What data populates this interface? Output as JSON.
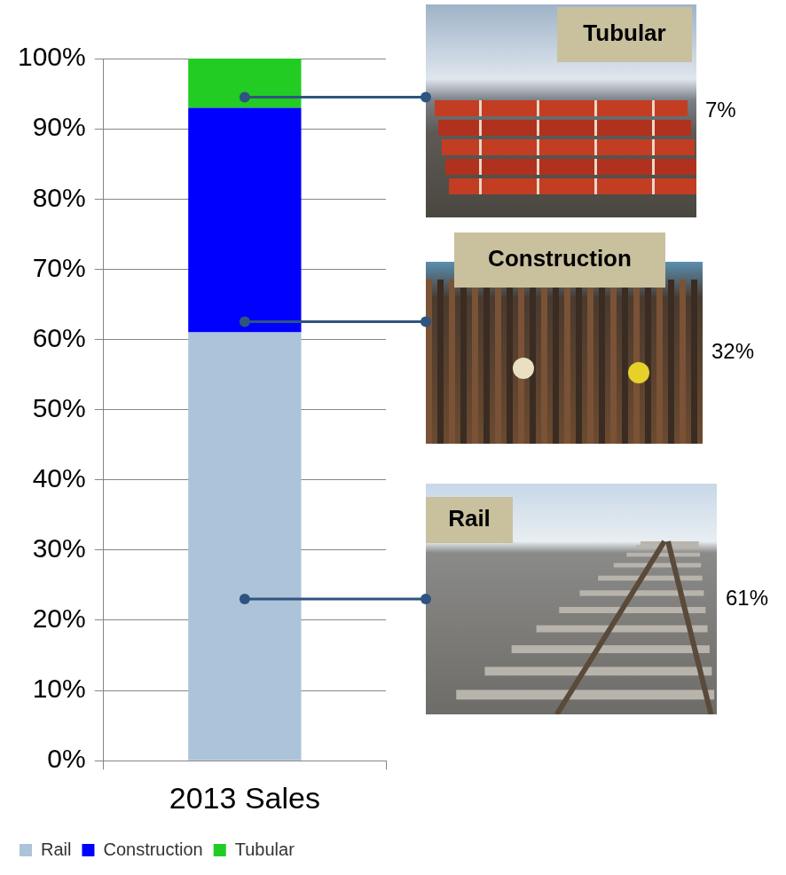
{
  "chart_data": {
    "type": "bar",
    "stacked": true,
    "categories": [
      "2013 Sales"
    ],
    "series": [
      {
        "name": "Rail",
        "color": "#adc3da",
        "values": [
          61
        ],
        "value_labels": [
          "61%"
        ]
      },
      {
        "name": "Construction",
        "color": "#0000ff",
        "values": [
          32
        ],
        "value_labels": [
          "32%"
        ]
      },
      {
        "name": "Tubular",
        "color": "#22cc22",
        "values": [
          7
        ],
        "value_labels": [
          "7%"
        ]
      }
    ],
    "ylim": [
      0,
      100
    ],
    "yticks": [
      {
        "value": 0,
        "label": "0%"
      },
      {
        "value": 10,
        "label": "10%"
      },
      {
        "value": 20,
        "label": "20%"
      },
      {
        "value": 30,
        "label": "30%"
      },
      {
        "value": 40,
        "label": "40%"
      },
      {
        "value": 50,
        "label": "50%"
      },
      {
        "value": 60,
        "label": "60%"
      },
      {
        "value": 70,
        "label": "70%"
      },
      {
        "value": 80,
        "label": "80%"
      },
      {
        "value": 90,
        "label": "90%"
      },
      {
        "value": 100,
        "label": "100%"
      }
    ],
    "grid": true,
    "legend": "bottom",
    "data_labels": true
  }
}
